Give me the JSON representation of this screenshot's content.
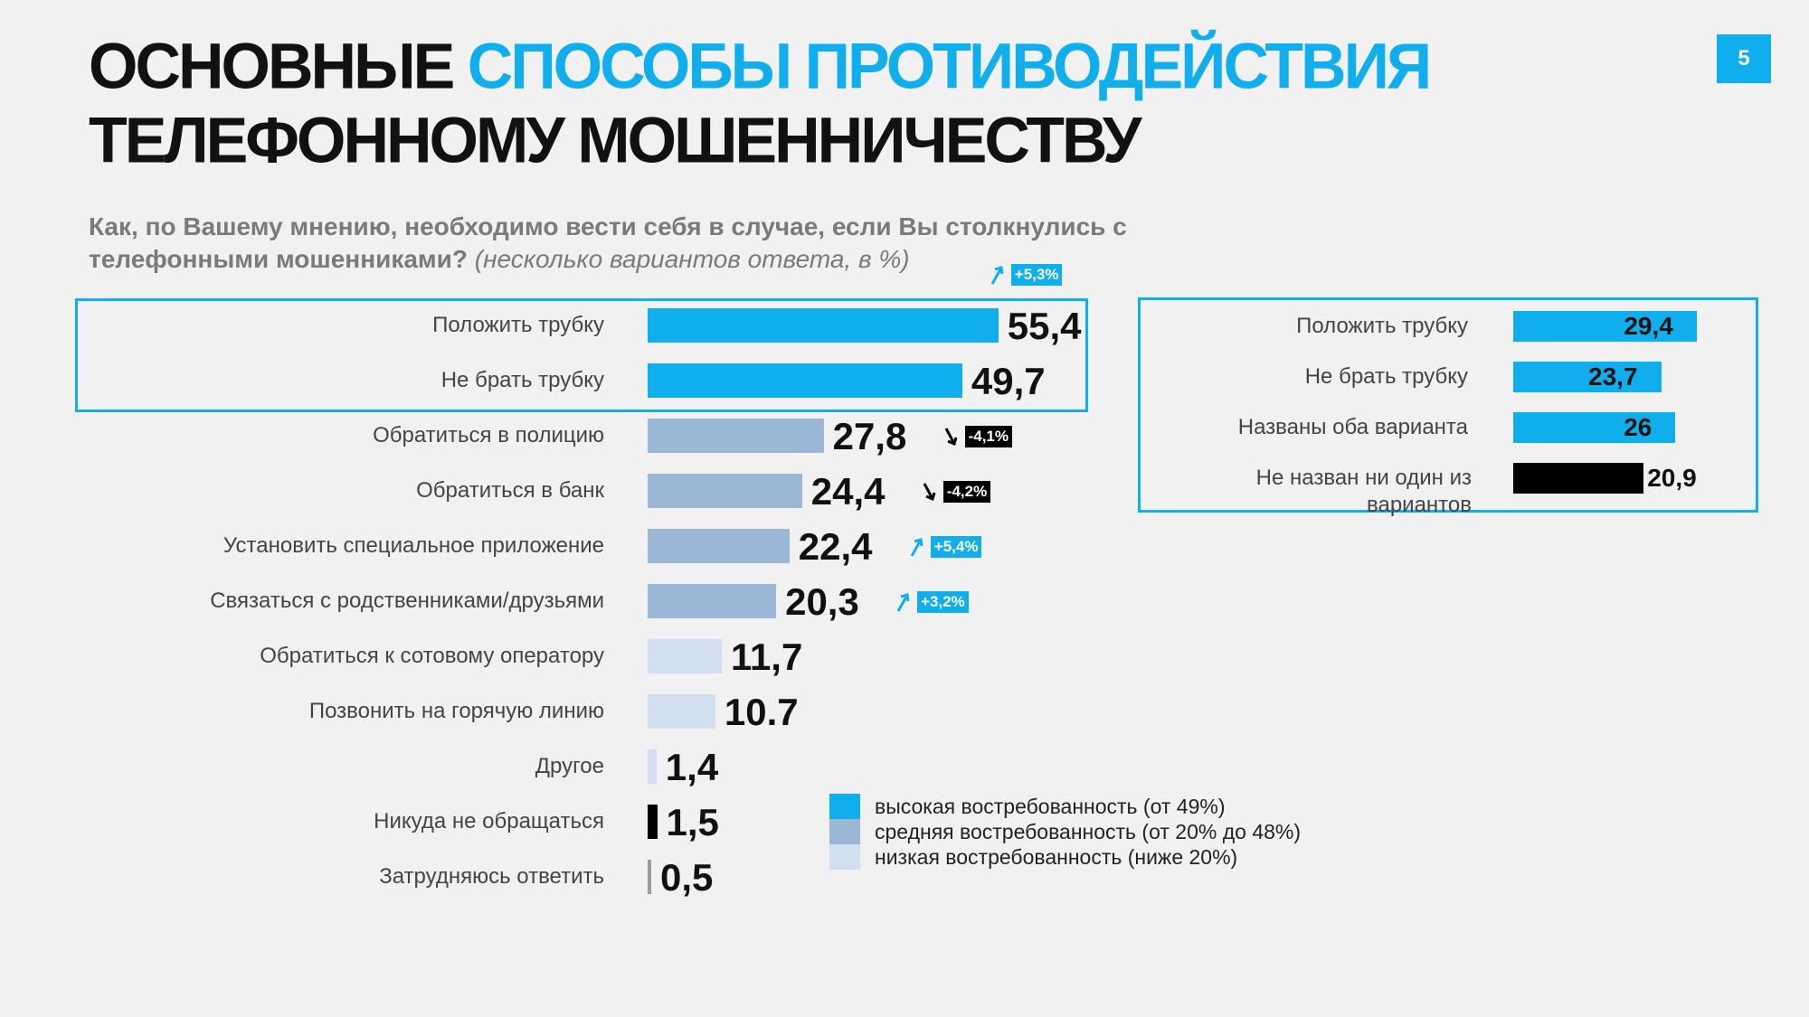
{
  "slide": {
    "title_part1": "ОСНОВНЫЕ ",
    "title_accent": "СПОСОБЫ ПРОТИВОДЕЙСТВИЯ",
    "title_line2": "ТЕЛЕФОННОМУ МОШЕННИЧЕСТВУ",
    "page_number": "5",
    "question_bold": "Как, по Вашему мнению, необходимо вести себя в случае, если Вы столкнулись с телефонными мошенниками?",
    "question_note": "(несколько вариантов ответа, в %)"
  },
  "colors": {
    "high": "#10aeec",
    "medium": "#9ab8d6",
    "low": "#d2dff0",
    "black": "#000000",
    "gray": "#9a9a9a",
    "up": "#10aeec",
    "down": "#000000"
  },
  "chart_data": [
    {
      "type": "bar",
      "orientation": "horizontal",
      "categories": [
        "Положить трубку",
        "Не брать трубку",
        "Обратиться в полицию",
        "Обратиться в банк",
        "Установить специальное приложение",
        "Связаться с родственниками/друзьями",
        "Обратиться к сотовому оператору",
        "Позвонить на горячую линию",
        "Другое",
        "Никуда не обращаться",
        "Затрудняюсь ответить"
      ],
      "values": [
        55.4,
        49.7,
        27.8,
        24.4,
        22.4,
        20.3,
        11.7,
        10.7,
        1.4,
        1.5,
        0.5
      ],
      "value_labels": [
        "55,4",
        "49,7",
        "27,8",
        "24,4",
        "22,4",
        "20,3",
        "11,7",
        "10.7",
        "1,4",
        "1,5",
        "0,5"
      ],
      "levels": [
        "high",
        "high",
        "medium",
        "medium",
        "medium",
        "medium",
        "low",
        "low",
        "low",
        "black",
        "gray"
      ],
      "changes": [
        {
          "index": 0,
          "label": "+5,3%",
          "direction": "up"
        },
        {
          "index": 2,
          "label": "-4,1%",
          "direction": "down"
        },
        {
          "index": 3,
          "label": "-4,2%",
          "direction": "down"
        },
        {
          "index": 4,
          "label": "+5,4%",
          "direction": "up"
        },
        {
          "index": 5,
          "label": "+3,2%",
          "direction": "up"
        }
      ],
      "unit": "%"
    },
    {
      "type": "bar",
      "orientation": "horizontal",
      "categories": [
        "Положить трубку",
        "Не брать трубку",
        "Названы оба варианта",
        "Не назван ни один из вариантов"
      ],
      "values": [
        29.4,
        23.7,
        26,
        20.9
      ],
      "value_labels": [
        "29,4",
        "23,7",
        "26",
        "20,9"
      ],
      "levels": [
        "high",
        "high",
        "high",
        "black"
      ]
    }
  ],
  "legend": [
    {
      "level": "high",
      "label": "высокая востребованность (от 49%)"
    },
    {
      "level": "medium",
      "label": "средняя востребованность (от 20% до 48%)"
    },
    {
      "level": "low",
      "label": "низкая востребованность (ниже 20%)"
    }
  ]
}
